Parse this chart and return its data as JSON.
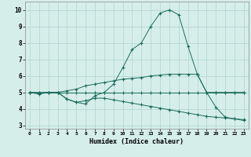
{
  "title": "",
  "xlabel": "Humidex (Indice chaleur)",
  "ylabel": "",
  "xlim": [
    -0.5,
    23.5
  ],
  "ylim": [
    2.8,
    10.5
  ],
  "xticks": [
    0,
    1,
    2,
    3,
    4,
    5,
    6,
    7,
    8,
    9,
    10,
    11,
    12,
    13,
    14,
    15,
    16,
    17,
    18,
    19,
    20,
    21,
    22,
    23
  ],
  "yticks": [
    3,
    4,
    5,
    6,
    7,
    8,
    9,
    10
  ],
  "background_color": "#d6eeea",
  "line_color": "#1a6b5a",
  "grid_color": "#aed4cc",
  "curves": [
    [
      5.0,
      4.9,
      5.0,
      5.0,
      4.6,
      4.4,
      4.3,
      4.8,
      5.0,
      5.5,
      6.5,
      7.6,
      8.0,
      9.0,
      9.8,
      10.0,
      9.7,
      7.8,
      6.1,
      5.0,
      4.1,
      3.5,
      3.4,
      3.3
    ],
    [
      5.0,
      5.0,
      5.0,
      5.0,
      5.0,
      5.0,
      5.0,
      5.0,
      5.0,
      5.0,
      5.0,
      5.0,
      5.0,
      5.0,
      5.0,
      5.0,
      5.0,
      5.0,
      5.0,
      5.0,
      5.0,
      5.0,
      5.0,
      5.0
    ],
    [
      5.0,
      4.95,
      5.0,
      5.0,
      5.1,
      5.2,
      5.4,
      5.5,
      5.6,
      5.7,
      5.8,
      5.85,
      5.9,
      6.0,
      6.05,
      6.1,
      6.1,
      6.1,
      6.1,
      5.0,
      5.0,
      5.0,
      5.0,
      5.0
    ],
    [
      5.0,
      5.0,
      5.0,
      5.0,
      4.6,
      4.4,
      4.5,
      4.65,
      4.65,
      4.55,
      4.45,
      4.35,
      4.25,
      4.15,
      4.05,
      3.95,
      3.85,
      3.75,
      3.65,
      3.55,
      3.5,
      3.45,
      3.4,
      3.35
    ]
  ]
}
